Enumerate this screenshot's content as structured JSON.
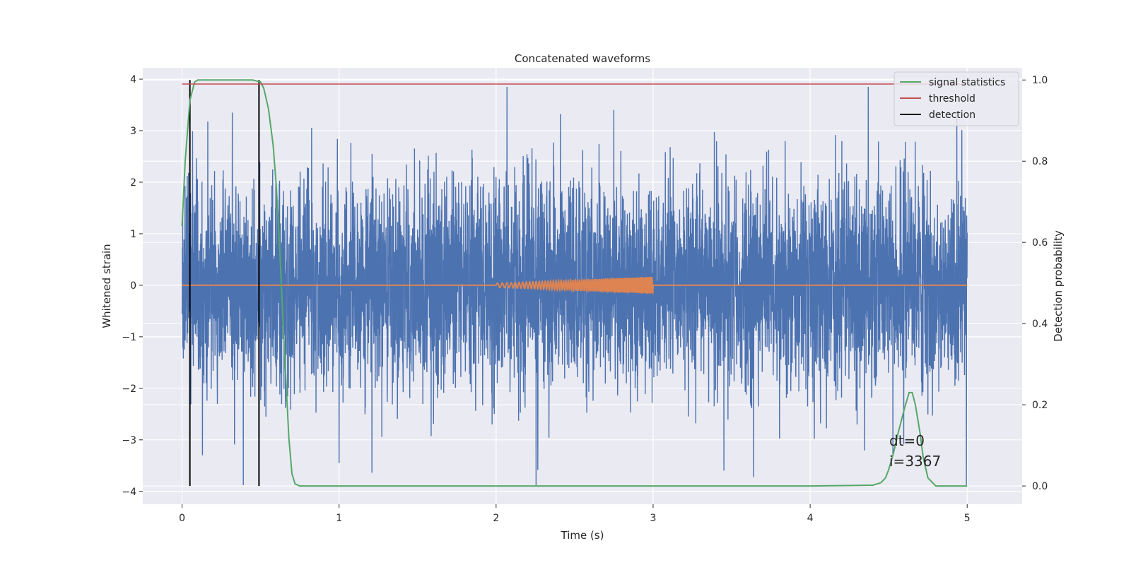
{
  "chart_data": {
    "type": "line",
    "title": "Concatenated waveforms",
    "xlabel": "Time (s)",
    "ylabel": "Whitened strain",
    "y2label": "Detection probability",
    "xlim": [
      -0.25,
      5.35
    ],
    "ylim": [
      -4.25,
      4.22
    ],
    "y2lim": [
      -0.045,
      1.03
    ],
    "xticks": [
      0,
      1,
      2,
      3,
      4,
      5
    ],
    "yticks": [
      -4,
      -3,
      -2,
      -1,
      0,
      1,
      2,
      3,
      4
    ],
    "y2ticks": [
      0.0,
      0.2,
      0.4,
      0.6,
      0.8,
      1.0
    ],
    "y2tick_labels": [
      "0.0",
      "0.2",
      "0.4",
      "0.6",
      "0.8",
      "1.0"
    ],
    "grid": true,
    "legend_position": "top-right",
    "legend": [
      {
        "label": "signal statistics",
        "color": "#55a868"
      },
      {
        "label": "threshold",
        "color": "#c44e52"
      },
      {
        "label": "detection",
        "color": "#000000"
      }
    ],
    "series": [
      {
        "name": "whitened strain",
        "axis": "left",
        "color": "#4c72b0",
        "kind": "noise",
        "x_range": [
          0,
          5
        ],
        "std": 1.0,
        "max": 3.85,
        "min": -3.88,
        "peaks": [
          [
            0.32,
            3.35
          ],
          [
            2.75,
            3.4
          ],
          [
            4.37,
            3.85
          ],
          [
            0.39,
            -3.88
          ],
          [
            3.64,
            -3.72
          ],
          [
            0.13,
            -3.3
          ],
          [
            1.0,
            -3.45
          ]
        ]
      },
      {
        "name": "injected waveform",
        "axis": "left",
        "color": "#dd8452",
        "kind": "chirp",
        "x_range": [
          0,
          5
        ],
        "chirp_start": 2.0,
        "chirp_end": 3.0,
        "amplitude_start": 0.04,
        "amplitude_end": 0.17
      },
      {
        "name": "signal statistics",
        "axis": "right",
        "color": "#55a868",
        "x": [
          0.0,
          0.02,
          0.05,
          0.08,
          0.1,
          0.15,
          0.3,
          0.45,
          0.5,
          0.52,
          0.55,
          0.58,
          0.6,
          0.62,
          0.65,
          0.68,
          0.7,
          0.72,
          0.75,
          1.0,
          2.0,
          3.0,
          4.0,
          4.4,
          4.45,
          4.48,
          4.5,
          4.53,
          4.56,
          4.6,
          4.63,
          4.65,
          4.67,
          4.7,
          4.72,
          4.75,
          4.8,
          5.0
        ],
        "y": [
          0.64,
          0.8,
          0.95,
          0.995,
          1.0,
          1.0,
          1.0,
          1.0,
          0.995,
          0.98,
          0.93,
          0.84,
          0.74,
          0.6,
          0.35,
          0.12,
          0.03,
          0.005,
          0.0,
          0.0,
          0.0,
          0.0,
          0.0,
          0.002,
          0.008,
          0.02,
          0.04,
          0.08,
          0.13,
          0.19,
          0.23,
          0.23,
          0.2,
          0.13,
          0.07,
          0.02,
          0.0,
          0.0
        ]
      },
      {
        "name": "threshold",
        "axis": "right",
        "color": "#c44e52",
        "x": [
          0,
          5
        ],
        "y": [
          0.99,
          0.99
        ]
      }
    ],
    "detections": [
      {
        "x": 0.05,
        "y2_range": [
          0.0,
          1.0
        ]
      },
      {
        "x": 0.49,
        "y2_range": [
          0.0,
          1.0
        ]
      }
    ],
    "annotation": {
      "lines": [
        "dt=0",
        "i=3367"
      ],
      "x": 4.5,
      "y2": 0.1
    }
  }
}
